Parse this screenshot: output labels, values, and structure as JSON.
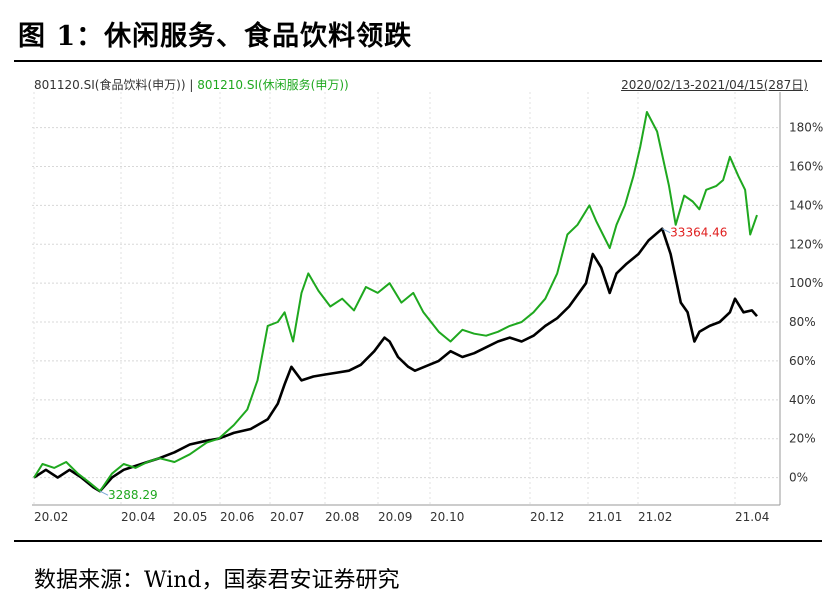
{
  "figure": {
    "title": "图 1：休闲服务、食品饮料领跌",
    "source": "数据来源：Wind，国泰君安证券研究"
  },
  "chart_data": {
    "type": "line",
    "legend": {
      "series1": "801120.SI(食品饮料(申万))",
      "separator": "|",
      "series2": "801210.SI(休闲服务(申万))"
    },
    "date_range": "2020/02/13-2021/04/15(287日)",
    "x_tick_labels": [
      "20.02",
      "20.04",
      "20.05",
      "20.06",
      "20.07",
      "20.08",
      "20.09",
      "20.10",
      "20.12",
      "21.01",
      "21.02",
      "21.04"
    ],
    "y_tick_labels": [
      "0%",
      "20%",
      "40%",
      "60%",
      "80%",
      "100%",
      "120%",
      "140%",
      "160%",
      "180%"
    ],
    "ylim": [
      -15,
      190
    ],
    "xlim": [
      "2020-02-13",
      "2021-04-15"
    ],
    "grid": true,
    "annotations": [
      {
        "text": "3288.29",
        "x": "2020-03-23",
        "y": -7,
        "color": "#1fa81f"
      },
      {
        "text": "33364.46",
        "x": "2021-02-18",
        "y": 128,
        "color": "#e02020"
      }
    ],
    "series": [
      {
        "color": "#000000",
        "points": [
          [
            "2020-02-13",
            0
          ],
          [
            "2020-02-20",
            4
          ],
          [
            "2020-02-27",
            0
          ],
          [
            "2020-03-05",
            4
          ],
          [
            "2020-03-12",
            0
          ],
          [
            "2020-03-19",
            -5
          ],
          [
            "2020-03-23",
            -7
          ],
          [
            "2020-03-30",
            0
          ],
          [
            "2020-04-06",
            4
          ],
          [
            "2020-04-13",
            6
          ],
          [
            "2020-04-20",
            8
          ],
          [
            "2020-04-27",
            10
          ],
          [
            "2020-05-06",
            13
          ],
          [
            "2020-05-15",
            17
          ],
          [
            "2020-05-25",
            19
          ],
          [
            "2020-06-01",
            20
          ],
          [
            "2020-06-10",
            23
          ],
          [
            "2020-06-20",
            25
          ],
          [
            "2020-06-30",
            30
          ],
          [
            "2020-07-06",
            38
          ],
          [
            "2020-07-10",
            48
          ],
          [
            "2020-07-14",
            57
          ],
          [
            "2020-07-20",
            50
          ],
          [
            "2020-07-27",
            52
          ],
          [
            "2020-08-03",
            53
          ],
          [
            "2020-08-10",
            54
          ],
          [
            "2020-08-17",
            55
          ],
          [
            "2020-08-24",
            58
          ],
          [
            "2020-09-01",
            65
          ],
          [
            "2020-09-07",
            72
          ],
          [
            "2020-09-10",
            70
          ],
          [
            "2020-09-15",
            62
          ],
          [
            "2020-09-21",
            57
          ],
          [
            "2020-09-25",
            55
          ],
          [
            "2020-10-09",
            60
          ],
          [
            "2020-10-16",
            65
          ],
          [
            "2020-10-23",
            62
          ],
          [
            "2020-10-30",
            64
          ],
          [
            "2020-11-06",
            67
          ],
          [
            "2020-11-13",
            70
          ],
          [
            "2020-11-20",
            72
          ],
          [
            "2020-11-27",
            70
          ],
          [
            "2020-12-04",
            73
          ],
          [
            "2020-12-11",
            78
          ],
          [
            "2020-12-18",
            82
          ],
          [
            "2020-12-25",
            88
          ],
          [
            "2021-01-04",
            100
          ],
          [
            "2021-01-08",
            115
          ],
          [
            "2021-01-13",
            108
          ],
          [
            "2021-01-18",
            95
          ],
          [
            "2021-01-22",
            105
          ],
          [
            "2021-01-28",
            110
          ],
          [
            "2021-02-04",
            115
          ],
          [
            "2021-02-10",
            122
          ],
          [
            "2021-02-18",
            128
          ],
          [
            "2021-02-23",
            115
          ],
          [
            "2021-03-01",
            90
          ],
          [
            "2021-03-05",
            85
          ],
          [
            "2021-03-09",
            70
          ],
          [
            "2021-03-12",
            75
          ],
          [
            "2021-03-18",
            78
          ],
          [
            "2021-03-24",
            80
          ],
          [
            "2021-03-30",
            85
          ],
          [
            "2021-04-02",
            92
          ],
          [
            "2021-04-07",
            85
          ],
          [
            "2021-04-12",
            86
          ],
          [
            "2021-04-15",
            83
          ]
        ]
      },
      {
        "color": "#1fa81f",
        "points": [
          [
            "2020-02-13",
            0
          ],
          [
            "2020-02-18",
            7
          ],
          [
            "2020-02-25",
            5
          ],
          [
            "2020-03-03",
            8
          ],
          [
            "2020-03-10",
            2
          ],
          [
            "2020-03-16",
            -2
          ],
          [
            "2020-03-23",
            -7
          ],
          [
            "2020-03-30",
            2
          ],
          [
            "2020-04-06",
            7
          ],
          [
            "2020-04-13",
            5
          ],
          [
            "2020-04-20",
            8
          ],
          [
            "2020-04-27",
            10
          ],
          [
            "2020-05-06",
            8
          ],
          [
            "2020-05-15",
            12
          ],
          [
            "2020-05-25",
            18
          ],
          [
            "2020-06-01",
            20
          ],
          [
            "2020-06-10",
            27
          ],
          [
            "2020-06-18",
            35
          ],
          [
            "2020-06-24",
            50
          ],
          [
            "2020-06-30",
            78
          ],
          [
            "2020-07-06",
            80
          ],
          [
            "2020-07-10",
            85
          ],
          [
            "2020-07-15",
            70
          ],
          [
            "2020-07-20",
            95
          ],
          [
            "2020-07-24",
            105
          ],
          [
            "2020-07-30",
            96
          ],
          [
            "2020-08-06",
            88
          ],
          [
            "2020-08-13",
            92
          ],
          [
            "2020-08-20",
            86
          ],
          [
            "2020-08-27",
            98
          ],
          [
            "2020-09-03",
            95
          ],
          [
            "2020-09-10",
            100
          ],
          [
            "2020-09-17",
            90
          ],
          [
            "2020-09-24",
            95
          ],
          [
            "2020-09-30",
            85
          ],
          [
            "2020-10-09",
            75
          ],
          [
            "2020-10-16",
            70
          ],
          [
            "2020-10-23",
            76
          ],
          [
            "2020-10-30",
            74
          ],
          [
            "2020-11-06",
            73
          ],
          [
            "2020-11-13",
            75
          ],
          [
            "2020-11-20",
            78
          ],
          [
            "2020-11-27",
            80
          ],
          [
            "2020-12-04",
            85
          ],
          [
            "2020-12-11",
            92
          ],
          [
            "2020-12-18",
            105
          ],
          [
            "2020-12-24",
            125
          ],
          [
            "2020-12-30",
            130
          ],
          [
            "2021-01-06",
            140
          ],
          [
            "2021-01-10",
            132
          ],
          [
            "2021-01-14",
            125
          ],
          [
            "2021-01-18",
            118
          ],
          [
            "2021-01-22",
            130
          ],
          [
            "2021-01-27",
            140
          ],
          [
            "2021-02-01",
            155
          ],
          [
            "2021-02-05",
            170
          ],
          [
            "2021-02-09",
            188
          ],
          [
            "2021-02-15",
            178
          ],
          [
            "2021-02-22",
            150
          ],
          [
            "2021-02-26",
            130
          ],
          [
            "2021-03-03",
            145
          ],
          [
            "2021-03-08",
            142
          ],
          [
            "2021-03-12",
            138
          ],
          [
            "2021-03-16",
            148
          ],
          [
            "2021-03-22",
            150
          ],
          [
            "2021-03-26",
            153
          ],
          [
            "2021-03-30",
            165
          ],
          [
            "2021-04-04",
            155
          ],
          [
            "2021-04-08",
            148
          ],
          [
            "2021-04-11",
            125
          ],
          [
            "2021-04-15",
            135
          ]
        ]
      }
    ]
  }
}
